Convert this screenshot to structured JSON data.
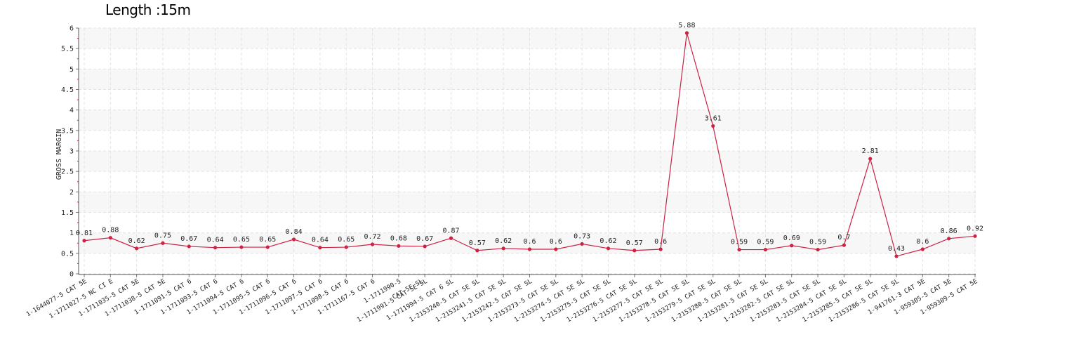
{
  "chart_data": {
    "type": "line",
    "title": "Length :15m",
    "xlabel": "",
    "ylabel": "GROSS MARGIN",
    "ylim": [
      0,
      6
    ],
    "yticks": [
      "0",
      "0.5",
      "1",
      "1.5",
      "2",
      "2.5",
      "3",
      "3.5",
      "4",
      "4.5",
      "5",
      "5.5",
      "6"
    ],
    "grid": true,
    "line_color": "#cc2244",
    "categories": [
      "1-1644077-5 CAT 5E",
      "1-1711027-5 NC CI E",
      "1-1711035-5 CAT 5E",
      "1-1711038-5 CAT 5E",
      "1-1711091-5 CAT 6",
      "1-1711093-5 CAT 6",
      "1-1711094-5 CAT 6",
      "1-1711095-5 CAT 6",
      "1-1711096-5 CAT 6",
      "1-1711097-5 CAT 6",
      "1-1711098-5 CAT 6",
      "1-1711167-5 CAT 6",
      "1-1711990-5",
      "1-1711991-5 CAT 5E SL",
      "1-1711994-5 CAT 6 SL",
      "1-2153240-5 CAT 5E SL",
      "1-2153241-5 CAT 5E SL",
      "1-2153242-5 CAT 5E SL",
      "1-2153273-5 CAT 5E SL",
      "1-2153274-5 CAT 5E SL",
      "1-2153275-5 CAT 5E SL",
      "1-2153276-5 CAT 5E SL",
      "1-2153277-5 CAT 5E SL",
      "1-2153278-5 CAT 5E SL",
      "1-2153279-5 CAT 5E SL",
      "1-2153280-5 CAT 5E SL",
      "1-2153281-5 CAT 5E SL",
      "1-2153282-5 CAT 5E SL",
      "1-2153283-5 CAT 5E SL",
      "1-2153284-5 CAT 5E SL",
      "1-2153285-5 CAT 5E SL",
      "1-2153286-5 CAT 5E SL",
      "1-941761-3 CAT 5E",
      "1-959305-5 CAT 5E",
      "1-959309-5 CAT 5E"
    ],
    "overlap_label": "CAT 5E SL",
    "values": [
      0.81,
      0.88,
      0.62,
      0.75,
      0.67,
      0.64,
      0.65,
      0.65,
      0.84,
      0.64,
      0.65,
      0.72,
      0.68,
      0.67,
      0.87,
      0.57,
      0.62,
      0.6,
      0.6,
      0.73,
      0.62,
      0.57,
      0.6,
      5.88,
      3.61,
      0.59,
      0.59,
      0.69,
      0.59,
      0.7,
      2.81,
      0.43,
      0.6,
      0.86,
      0.92
    ],
    "data_labels": [
      "0.81",
      "0.88",
      "0.62",
      "0.75",
      "0.67",
      "0.64",
      "0.65",
      "0.65",
      "0.84",
      "0.64",
      "0.65",
      "0.72",
      "0.68",
      "0.67",
      "0.87",
      "0.57",
      "0.62",
      "0.6",
      "0.6",
      "0.73",
      "0.62",
      "0.57",
      "0.6",
      "5.88",
      "3.61",
      "0.59",
      "0.59",
      "0.69",
      "0.59",
      "0.7",
      "2.81",
      "0.43",
      "0.6",
      "0.86",
      "0.92"
    ]
  }
}
